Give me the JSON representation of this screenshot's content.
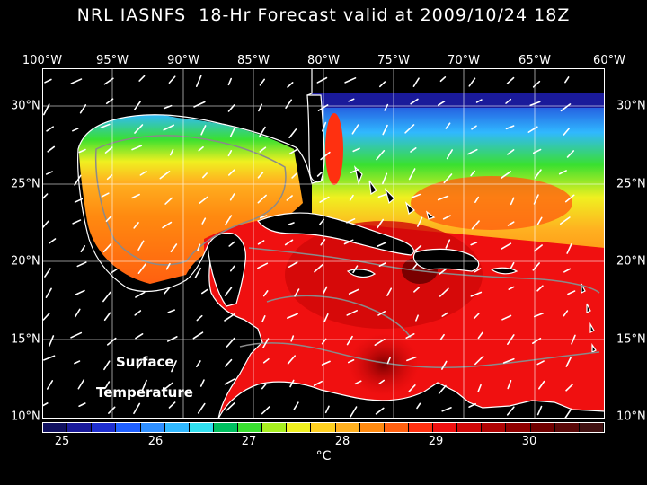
{
  "title": "NRL IASNFS  18-Hr Forecast valid at 2009/10/24 18Z",
  "lon_labels": [
    "100°W",
    "95°W",
    "90°W",
    "85°W",
    "80°W",
    "75°W",
    "70°W",
    "65°W",
    "60°W"
  ],
  "lat_labels": [
    "30°N",
    "25°N",
    "20°N",
    "15°N",
    "10°N"
  ],
  "overlay": {
    "line1": "Surface",
    "line2": "Temperature"
  },
  "colorbar": {
    "tick_labels": [
      "25",
      "26",
      "27",
      "28",
      "29",
      "30"
    ],
    "unit": "°C",
    "colors": [
      "#101060",
      "#1a1a9a",
      "#1f2fd0",
      "#2060ff",
      "#2f8fff",
      "#30b8ff",
      "#30e0f0",
      "#00c060",
      "#3ae030",
      "#a8f020",
      "#f0f020",
      "#ffd020",
      "#ffb020",
      "#ff8a10",
      "#ff6010",
      "#ff3010",
      "#f01010",
      "#d00808",
      "#b00404",
      "#900000",
      "#700000",
      "#5a0808",
      "#401010"
    ]
  }
}
